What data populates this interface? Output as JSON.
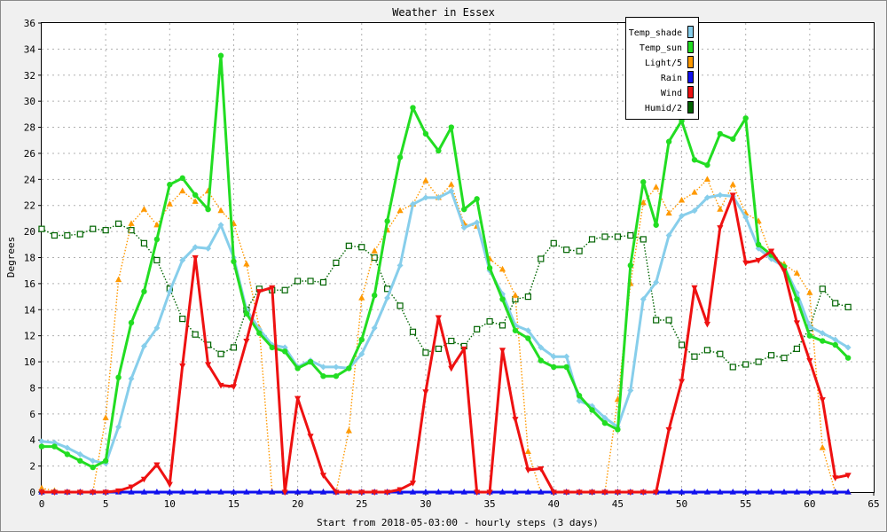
{
  "chart_data": {
    "type": "line",
    "title": "Weather in Essex",
    "xlabel": "Start from 2018-05-03:00 - hourly steps (3 days)",
    "ylabel": "Degrees",
    "xlim": [
      0,
      65
    ],
    "ylim": [
      0,
      36
    ],
    "xticks": [
      0,
      5,
      10,
      15,
      20,
      25,
      30,
      35,
      40,
      45,
      50,
      55,
      60,
      65
    ],
    "yticks": [
      0,
      2,
      4,
      6,
      8,
      10,
      12,
      14,
      16,
      18,
      20,
      22,
      24,
      26,
      28,
      30,
      32,
      34,
      36
    ],
    "grid": true,
    "legend_position": "top-right",
    "series": [
      {
        "name": "Temp_shade",
        "color": "#87ceeb",
        "marker": "diamond",
        "style": "solid",
        "values": [
          3.9,
          3.8,
          3.4,
          2.9,
          2.4,
          2.2,
          5.0,
          8.7,
          11.2,
          12.6,
          15.4,
          17.8,
          18.8,
          18.7,
          20.5,
          18.0,
          14.0,
          12.5,
          11.3,
          11.1,
          9.6,
          10.1,
          9.6,
          9.6,
          9.5,
          10.6,
          12.6,
          14.9,
          17.4,
          22.1,
          22.6,
          22.6,
          23.1,
          20.3,
          20.7,
          17.0,
          15.2,
          12.8,
          12.4,
          11.1,
          10.4,
          10.4,
          7.0,
          6.6,
          5.7,
          5.0,
          7.8,
          14.8,
          16.1,
          19.7,
          21.2,
          21.6,
          22.6,
          22.8,
          22.7,
          21.1,
          18.7,
          17.9,
          17.3,
          15.3,
          12.7,
          12.2,
          11.7,
          11.1
        ]
      },
      {
        "name": "Temp_sun",
        "color": "#22dd22",
        "marker": "circle",
        "style": "solid",
        "values": [
          3.5,
          3.5,
          2.9,
          2.4,
          1.9,
          2.4,
          8.8,
          13.0,
          15.4,
          19.4,
          23.6,
          24.1,
          22.8,
          21.7,
          33.5,
          17.7,
          13.7,
          12.2,
          11.1,
          10.8,
          9.5,
          10.0,
          8.9,
          8.9,
          9.5,
          11.7,
          15.1,
          20.8,
          25.7,
          29.5,
          27.5,
          26.2,
          28.0,
          21.7,
          22.5,
          17.2,
          14.8,
          12.4,
          11.8,
          10.1,
          9.6,
          9.6,
          7.4,
          6.3,
          5.3,
          4.8,
          17.4,
          23.8,
          20.5,
          26.9,
          28.5,
          25.5,
          25.1,
          27.5,
          27.1,
          28.7,
          19.0,
          18.2,
          17.3,
          14.8,
          12.0,
          11.6,
          11.3,
          10.3
        ]
      },
      {
        "name": "Light/5",
        "color": "#ff9900",
        "marker": "triangle-up",
        "style": "dotted",
        "values": [
          0.3,
          0.1,
          0.0,
          0.0,
          0.0,
          5.7,
          16.3,
          20.6,
          21.7,
          20.5,
          22.1,
          23.1,
          22.3,
          23.1,
          21.6,
          20.6,
          17.5,
          12.6,
          0.0,
          0.0,
          0.0,
          0.0,
          0.0,
          0.0,
          4.7,
          14.9,
          18.5,
          20.1,
          21.6,
          22.1,
          23.9,
          22.6,
          23.6,
          20.6,
          20.4,
          17.9,
          17.1,
          15.1,
          3.1,
          0.0,
          0.0,
          0.0,
          0.0,
          0.0,
          0.0,
          7.1,
          16.0,
          22.2,
          23.4,
          21.4,
          22.4,
          23.0,
          24.0,
          21.7,
          23.6,
          21.4,
          20.8,
          18.1,
          17.5,
          16.8,
          15.3,
          3.4,
          0.0,
          0.0
        ]
      },
      {
        "name": "Rain",
        "color": "#1010ee",
        "marker": "triangle-up",
        "style": "solid",
        "values": [
          0,
          0,
          0,
          0,
          0,
          0,
          0,
          0,
          0,
          0,
          0,
          0,
          0,
          0,
          0,
          0,
          0,
          0,
          0,
          0,
          0,
          0,
          0,
          0,
          0,
          0,
          0,
          0,
          0,
          0,
          0,
          0,
          0,
          0,
          0,
          0,
          0,
          0,
          0,
          0,
          0,
          0,
          0,
          0,
          0,
          0,
          0,
          0,
          0,
          0,
          0,
          0,
          0,
          0,
          0,
          0,
          0,
          0,
          0,
          0,
          0,
          0,
          0,
          0
        ]
      },
      {
        "name": "Wind",
        "color": "#ee1111",
        "marker": "triangle-down",
        "style": "solid",
        "values": [
          0,
          0,
          0,
          0,
          0,
          0,
          0.1,
          0.4,
          1.0,
          2.1,
          0.6,
          9.7,
          18.0,
          9.8,
          8.2,
          8.1,
          11.6,
          15.4,
          15.7,
          0,
          7.2,
          4.3,
          1.3,
          0,
          0,
          0,
          0,
          0,
          0.2,
          0.7,
          7.7,
          13.4,
          9.5,
          11.0,
          0,
          0,
          10.9,
          5.6,
          1.7,
          1.8,
          0,
          0,
          0,
          0,
          0,
          0,
          0,
          0,
          0,
          4.8,
          8.5,
          15.7,
          12.9,
          20.3,
          22.8,
          17.6,
          17.8,
          18.5,
          17.0,
          13.0,
          10.1,
          7.1,
          1.1,
          1.3
        ]
      },
      {
        "name": "Humid/2",
        "color": "#006400",
        "marker": "square",
        "style": "dotted",
        "values": [
          20.2,
          19.7,
          19.7,
          19.8,
          20.2,
          20.1,
          20.6,
          20.1,
          19.1,
          17.8,
          15.6,
          13.3,
          12.1,
          11.3,
          10.6,
          11.1,
          14.0,
          15.6,
          15.5,
          15.5,
          16.2,
          16.2,
          16.1,
          17.6,
          18.9,
          18.8,
          18.0,
          15.6,
          14.3,
          12.3,
          10.7,
          11.0,
          11.6,
          11.2,
          12.5,
          13.1,
          12.8,
          14.8,
          15.0,
          17.9,
          19.1,
          18.6,
          18.5,
          19.4,
          19.6,
          19.6,
          19.7,
          19.4,
          13.2,
          13.2,
          11.3,
          10.4,
          10.9,
          10.6,
          9.6,
          9.8,
          10.0,
          10.5,
          10.3,
          11.0,
          12.6,
          15.6,
          14.5,
          14.2
        ]
      }
    ]
  }
}
